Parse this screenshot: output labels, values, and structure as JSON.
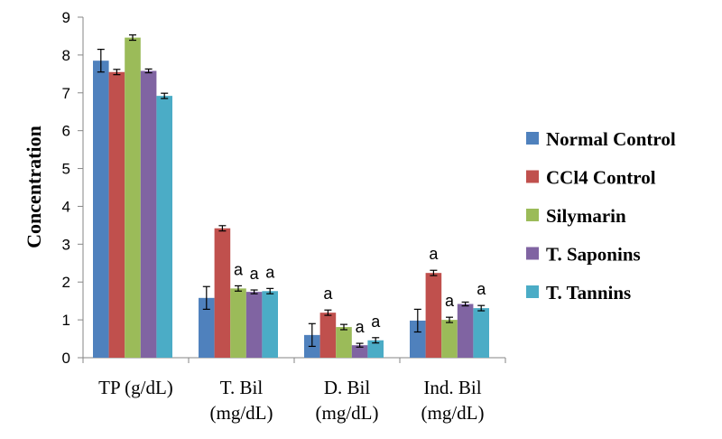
{
  "chart_data": {
    "type": "bar",
    "ylabel": "Concentration",
    "ylim": [
      0,
      9
    ],
    "yticks": [
      "0",
      "1",
      "2",
      "3",
      "4",
      "5",
      "6",
      "7",
      "8",
      "9"
    ],
    "categories": [
      [
        "TP (g/dL)"
      ],
      [
        "T. Bil",
        "(mg/dL)"
      ],
      [
        "D. Bil",
        "(mg/dL)"
      ],
      [
        "Ind. Bil",
        "(mg/dL)"
      ]
    ],
    "series": [
      {
        "name": "Normal Control",
        "color": "#4f81bd",
        "values": [
          7.85,
          1.58,
          0.6,
          0.98
        ],
        "errors": [
          0.3,
          0.3,
          0.3,
          0.3
        ],
        "sig": [
          "",
          "",
          "",
          ""
        ]
      },
      {
        "name": "CCl4 Control",
        "color": "#c0504d",
        "values": [
          7.55,
          3.42,
          1.19,
          2.24
        ],
        "errors": [
          0.07,
          0.07,
          0.07,
          0.07
        ],
        "sig": [
          "",
          "",
          "a",
          "a"
        ]
      },
      {
        "name": "Silymarin",
        "color": "#9bbb59",
        "values": [
          8.46,
          1.83,
          0.81,
          1.0
        ],
        "errors": [
          0.07,
          0.07,
          0.07,
          0.07
        ],
        "sig": [
          "",
          "a",
          "",
          "a"
        ]
      },
      {
        "name": "T. Saponins",
        "color": "#8064a2",
        "values": [
          7.58,
          1.74,
          0.33,
          1.42
        ],
        "errors": [
          0.05,
          0.05,
          0.05,
          0.05
        ],
        "sig": [
          "",
          "a",
          "a",
          ""
        ]
      },
      {
        "name": "T. Tannins",
        "color": "#4bacc6",
        "values": [
          6.92,
          1.76,
          0.46,
          1.31
        ],
        "errors": [
          0.07,
          0.07,
          0.07,
          0.07
        ],
        "sig": [
          "",
          "a",
          "a",
          "a"
        ]
      }
    ],
    "legend_position": "right",
    "grid": false
  }
}
